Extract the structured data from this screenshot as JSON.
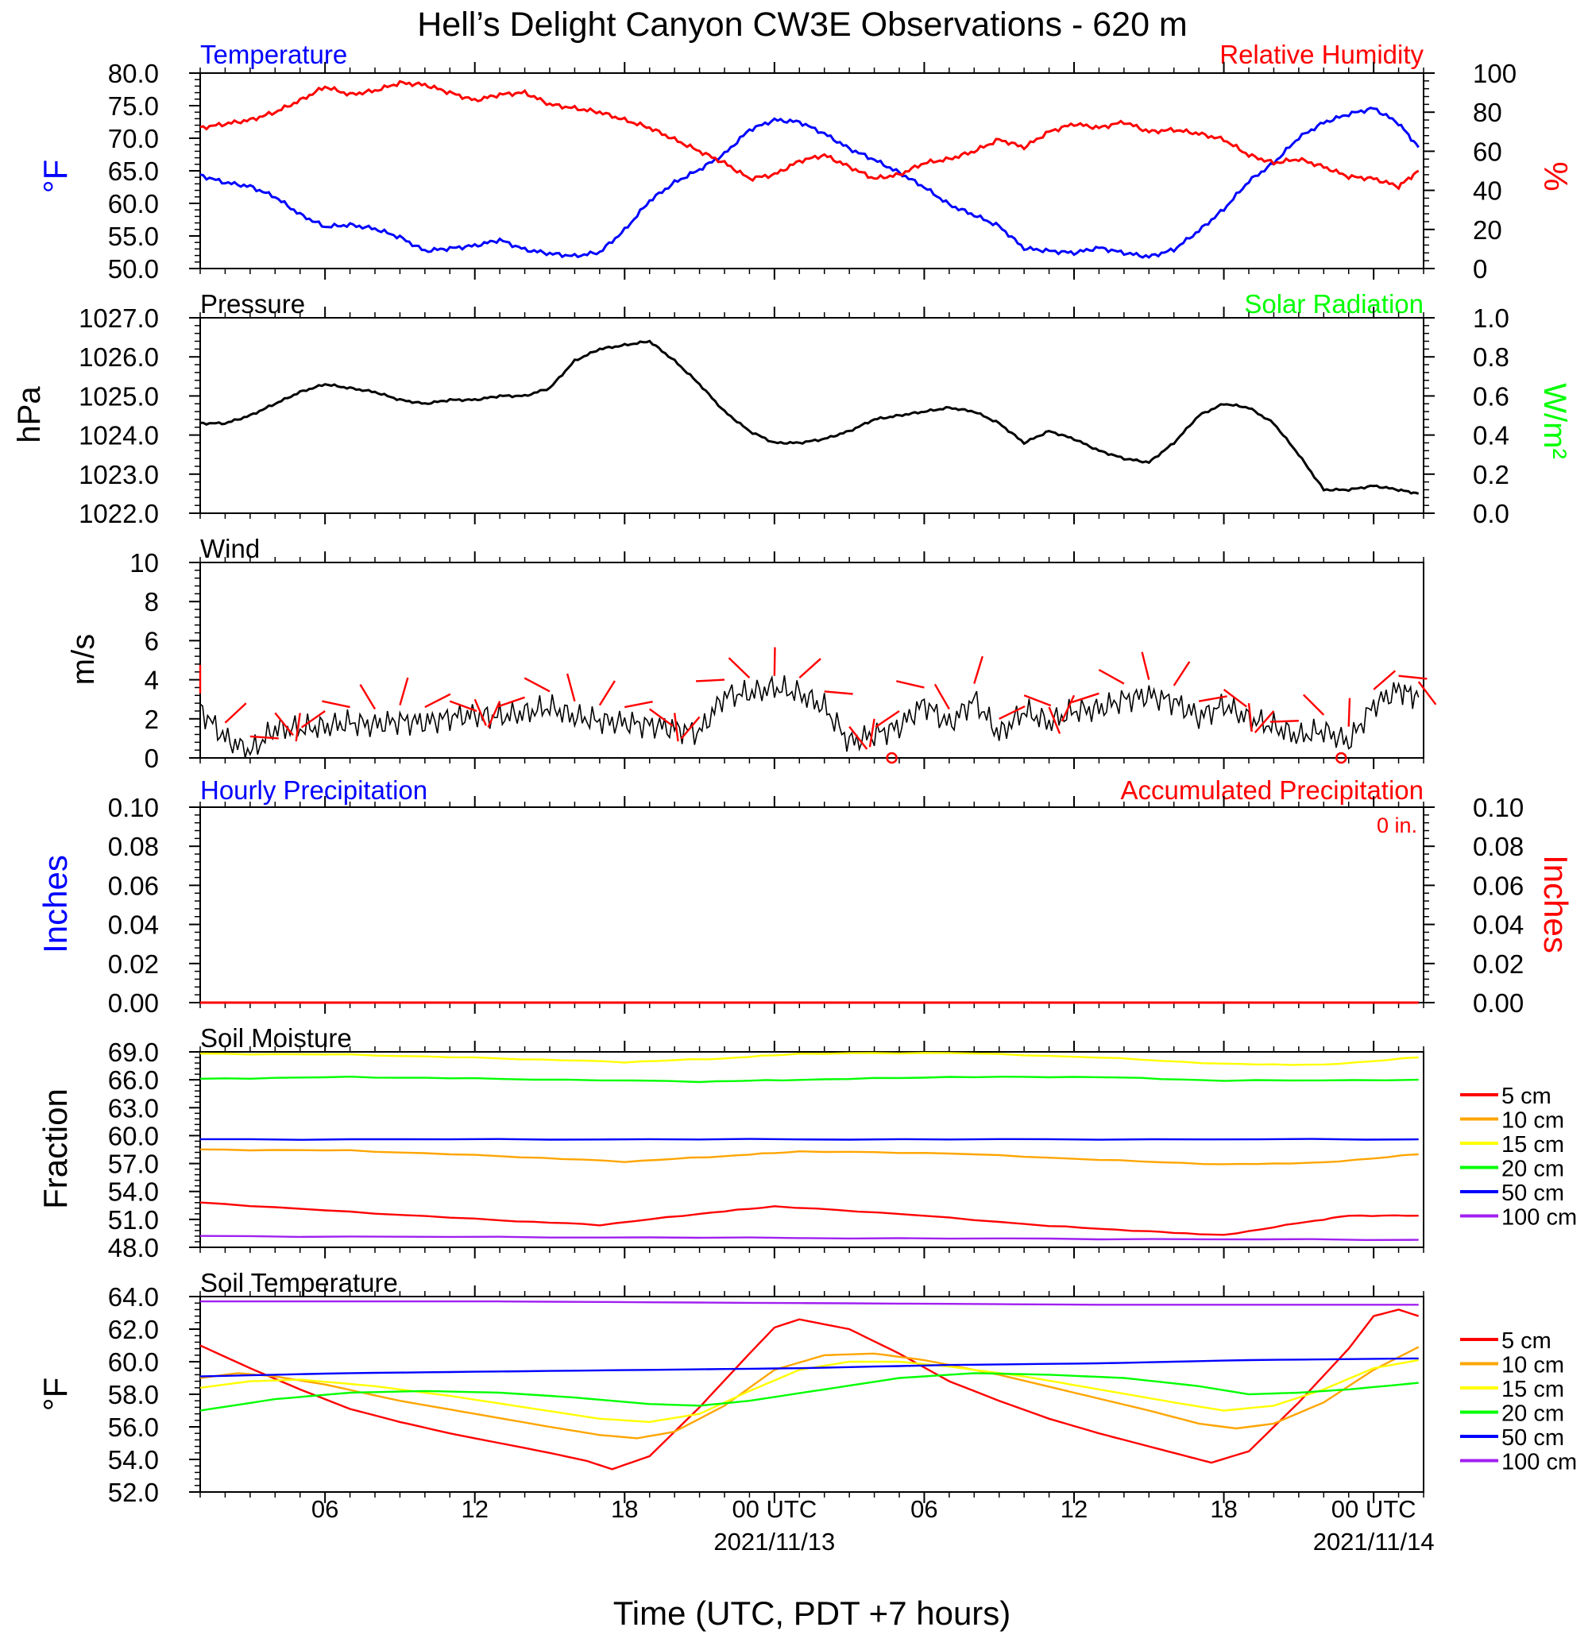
{
  "title": "Hell’s Delight Canyon CW3E Observations - 620 m",
  "x_axis": {
    "label": "Time (UTC, PDT +7 hours)",
    "range_hours": [
      0,
      49
    ],
    "ticks": [
      {
        "h": 5,
        "label": "06"
      },
      {
        "h": 11,
        "label": "12"
      },
      {
        "h": 17,
        "label": "18"
      },
      {
        "h": 23,
        "label": "00 UTC"
      },
      {
        "h": 29,
        "label": "06"
      },
      {
        "h": 35,
        "label": "12"
      },
      {
        "h": 41,
        "label": "18"
      },
      {
        "h": 47,
        "label": "00 UTC"
      }
    ],
    "date_labels": [
      {
        "h": 23,
        "label": "2021/11/13"
      },
      {
        "h": 47,
        "label": "2021/11/14"
      }
    ]
  },
  "colors": {
    "temperature": "#0000ff",
    "humidity": "#ff0000",
    "pressure": "#000000",
    "solar": "#00ff00",
    "wind": "#000000",
    "barb": "#ff0000",
    "hourly_precip": "#0000ff",
    "accum_precip": "#ff0000",
    "depth_5": "#ff0000",
    "depth_10": "#ffa500",
    "depth_15": "#ffff00",
    "depth_20": "#00ff00",
    "depth_50": "#0000ff",
    "depth_100": "#a020f0"
  },
  "panel_titles": {
    "temperature": "Temperature",
    "humidity": "Relative Humidity",
    "pressure": "Pressure",
    "solar": "Solar Radiation",
    "wind": "Wind",
    "hourly_precip": "Hourly Precipitation",
    "accum_precip": "Accumulated Precipitation",
    "soil_moisture": "Soil Moisture",
    "soil_temperature": "Soil Temperature"
  },
  "axis_units": {
    "temp": "°F",
    "rh": "%",
    "pressure": "hPa",
    "solar": "W/m²",
    "wind": "m/s",
    "precip_left": "Inches",
    "precip_right": "Inches",
    "soil_moisture": "Fraction",
    "soil_temp": "°F"
  },
  "accum_total": "0 in.",
  "legend_labels": [
    "5 cm",
    "10 cm",
    "15 cm",
    "20 cm",
    "50 cm",
    "100 cm"
  ],
  "chart_data": [
    {
      "panel": "temperature_humidity",
      "type": "line",
      "ylim_left": [
        50,
        80
      ],
      "ylim_right": [
        0,
        100
      ],
      "left_ticks": [
        "50.0",
        "55.0",
        "60.0",
        "65.0",
        "70.0",
        "75.0",
        "80.0"
      ],
      "right_ticks": [
        "0",
        "20",
        "40",
        "60",
        "80",
        "100"
      ],
      "series": [
        {
          "name": "Temperature",
          "axis": "left",
          "color": "temperature",
          "x": [
            0,
            1,
            2,
            3,
            4,
            5,
            6,
            7,
            8,
            9,
            10,
            11,
            12,
            13,
            14,
            15,
            16,
            17,
            18,
            19,
            20,
            21,
            22,
            23,
            24,
            25,
            26,
            27,
            28,
            29,
            30,
            31,
            32,
            33,
            34,
            35,
            36,
            37,
            38,
            39,
            40,
            41,
            42,
            43,
            44,
            45,
            46,
            47,
            48,
            48.8
          ],
          "y": [
            64.3,
            63.2,
            62.6,
            61.0,
            58.3,
            56.4,
            56.7,
            56.1,
            54.8,
            52.7,
            53.1,
            53.5,
            54.4,
            52.9,
            52.3,
            51.9,
            52.5,
            55.9,
            60.4,
            63.2,
            65.2,
            67.6,
            71.3,
            72.8,
            72.5,
            70.7,
            68.4,
            66.7,
            64.7,
            62.5,
            59.8,
            58.2,
            56.5,
            53.1,
            52.7,
            52.4,
            53.2,
            52.4,
            51.8,
            52.9,
            55.8,
            59.1,
            63.4,
            66.2,
            70.1,
            72.4,
            73.7,
            74.6,
            72.3,
            68.6
          ]
        },
        {
          "name": "Relative Humidity",
          "axis": "right",
          "color": "humidity",
          "x": [
            0,
            1,
            2,
            3,
            4,
            5,
            6,
            7,
            8,
            9,
            10,
            11,
            12,
            13,
            14,
            15,
            16,
            17,
            18,
            19,
            20,
            21,
            22,
            23,
            24,
            25,
            26,
            27,
            28,
            29,
            30,
            31,
            32,
            33,
            34,
            35,
            36,
            37,
            38,
            39,
            40,
            41,
            42,
            43,
            44,
            45,
            46,
            47,
            48,
            48.8
          ],
          "y": [
            72,
            74,
            76,
            80,
            86,
            93,
            89,
            91,
            95,
            94,
            90,
            86,
            89,
            90,
            84,
            82,
            80,
            76,
            72,
            66,
            60,
            54,
            46,
            48,
            55,
            58,
            52,
            46,
            48,
            54,
            56,
            60,
            66,
            62,
            70,
            74,
            72,
            75,
            70,
            71,
            69,
            66,
            58,
            54,
            56,
            52,
            47,
            46,
            42,
            50
          ]
        }
      ]
    },
    {
      "panel": "pressure_solar",
      "type": "line",
      "ylim_left": [
        1022,
        1027
      ],
      "ylim_right": [
        0,
        1
      ],
      "left_ticks": [
        "1022.0",
        "1023.0",
        "1024.0",
        "1025.0",
        "1026.0",
        "1027.0"
      ],
      "right_ticks": [
        "0.0",
        "0.2",
        "0.4",
        "0.6",
        "0.8",
        "1.0"
      ],
      "series": [
        {
          "name": "Pressure",
          "axis": "left",
          "color": "pressure",
          "x": [
            0,
            1,
            2,
            3,
            4,
            5,
            6,
            7,
            8,
            9,
            10,
            11,
            12,
            13,
            14,
            15,
            16,
            17,
            18,
            19,
            20,
            21,
            22,
            23,
            24,
            25,
            26,
            27,
            28,
            29,
            30,
            31,
            32,
            33,
            34,
            35,
            36,
            37,
            38,
            39,
            40,
            41,
            42,
            43,
            44,
            45,
            46,
            47,
            48,
            48.8
          ],
          "y": [
            1024.3,
            1024.3,
            1024.5,
            1024.8,
            1025.1,
            1025.3,
            1025.2,
            1025.1,
            1024.9,
            1024.8,
            1024.9,
            1024.9,
            1025.0,
            1025.0,
            1025.2,
            1025.9,
            1026.2,
            1026.3,
            1026.4,
            1025.9,
            1025.3,
            1024.6,
            1024.1,
            1023.8,
            1023.8,
            1023.9,
            1024.1,
            1024.4,
            1024.5,
            1024.6,
            1024.7,
            1024.6,
            1024.3,
            1023.8,
            1024.1,
            1023.9,
            1023.6,
            1023.4,
            1023.3,
            1023.8,
            1024.5,
            1024.8,
            1024.7,
            1024.3,
            1023.5,
            1022.6,
            1022.6,
            1022.7,
            1022.6,
            1022.5
          ]
        }
      ]
    },
    {
      "panel": "wind",
      "type": "line",
      "ylim": [
        0,
        10
      ],
      "ticks": [
        "0",
        "2",
        "4",
        "6",
        "8",
        "10"
      ],
      "series": [
        {
          "name": "Wind",
          "color": "wind",
          "x": [
            0,
            1,
            2,
            3,
            4,
            5,
            6,
            7,
            8,
            9,
            10,
            11,
            12,
            13,
            14,
            15,
            16,
            17,
            18,
            19,
            20,
            21,
            22,
            23,
            24,
            25,
            26,
            27,
            28,
            29,
            30,
            31,
            32,
            33,
            34,
            35,
            36,
            37,
            38,
            39,
            40,
            41,
            42,
            43,
            44,
            45,
            46,
            47,
            48,
            48.8
          ],
          "y": [
            2.5,
            1.0,
            0.3,
            1.5,
            1.5,
            1.6,
            1.8,
            1.7,
            1.9,
            1.8,
            2.1,
            2.2,
            2.1,
            2.3,
            2.6,
            2.1,
            1.9,
            1.8,
            1.7,
            1.5,
            1.3,
            3.2,
            3.3,
            3.6,
            3.3,
            2.6,
            0.8,
            1.2,
            1.6,
            2.8,
            1.7,
            3.0,
            1.2,
            2.4,
            1.8,
            2.4,
            2.5,
            3.0,
            3.2,
            2.9,
            2.1,
            2.7,
            2.0,
            1.6,
            1.1,
            1.4,
            0.8,
            2.7,
            3.5,
            3.1
          ]
        }
      ]
    },
    {
      "panel": "precipitation",
      "type": "line",
      "ylim_left": [
        0,
        0.1
      ],
      "ylim_right": [
        0,
        0.1
      ],
      "left_ticks": [
        "0.00",
        "0.02",
        "0.04",
        "0.06",
        "0.08",
        "0.10"
      ],
      "right_ticks": [
        "0.00",
        "0.02",
        "0.04",
        "0.06",
        "0.08",
        "0.10"
      ],
      "series": [
        {
          "name": "Hourly Precipitation",
          "color": "hourly_precip",
          "x": [
            0,
            48.8
          ],
          "y": [
            0,
            0
          ]
        },
        {
          "name": "Accumulated Precipitation",
          "color": "accum_precip",
          "x": [
            0,
            48.8
          ],
          "y": [
            0,
            0
          ]
        }
      ]
    },
    {
      "panel": "soil_moisture",
      "type": "line",
      "ylim": [
        48,
        69
      ],
      "ticks": [
        "48.0",
        "51.0",
        "54.0",
        "57.0",
        "60.0",
        "63.0",
        "66.0",
        "69.0"
      ],
      "series": [
        {
          "name": "5 cm",
          "color": "depth_5",
          "x": [
            0,
            6,
            12,
            16,
            20,
            23,
            28,
            34,
            38,
            41,
            44,
            46,
            48.8
          ],
          "y": [
            52.8,
            51.8,
            50.9,
            50.4,
            51.6,
            52.4,
            51.6,
            50.3,
            49.7,
            49.3,
            50.6,
            51.4,
            51.4
          ]
        },
        {
          "name": "10 cm",
          "color": "depth_10",
          "x": [
            0,
            6,
            12,
            17,
            21,
            24,
            30,
            36,
            41,
            45,
            48.8
          ],
          "y": [
            58.5,
            58.4,
            57.8,
            57.2,
            57.8,
            58.3,
            58.1,
            57.4,
            56.9,
            57.1,
            58.0
          ]
        },
        {
          "name": "15 cm",
          "color": "depth_15",
          "x": [
            0,
            6,
            12,
            17,
            21,
            24,
            30,
            36,
            41,
            45,
            48.8
          ],
          "y": [
            68.8,
            68.7,
            68.3,
            67.9,
            68.3,
            68.8,
            68.9,
            68.4,
            67.7,
            67.6,
            68.4
          ]
        },
        {
          "name": "20 cm",
          "color": "depth_20",
          "x": [
            0,
            6,
            12,
            20,
            24,
            30,
            36,
            41,
            48.8
          ],
          "y": [
            66.1,
            66.3,
            66.1,
            65.8,
            66.0,
            66.3,
            66.3,
            65.9,
            66.0
          ]
        },
        {
          "name": "50 cm",
          "color": "depth_50",
          "x": [
            0,
            12,
            24,
            36,
            48.8
          ],
          "y": [
            59.6,
            59.6,
            59.6,
            59.6,
            59.6
          ]
        },
        {
          "name": "100 cm",
          "color": "depth_100",
          "x": [
            0,
            12,
            24,
            36,
            48.8
          ],
          "y": [
            49.2,
            49.1,
            49.0,
            48.9,
            48.8
          ]
        }
      ]
    },
    {
      "panel": "soil_temperature",
      "type": "line",
      "ylim": [
        52,
        64
      ],
      "ticks": [
        "52.0",
        "54.0",
        "56.0",
        "58.0",
        "60.0",
        "62.0",
        "64.0"
      ],
      "series": [
        {
          "name": "5 cm",
          "color": "depth_5",
          "x": [
            0,
            2,
            4,
            6,
            8,
            10,
            12,
            14,
            15.5,
            16.5,
            18,
            20,
            22,
            23,
            24,
            26,
            28,
            30,
            32,
            34,
            36,
            38,
            39.5,
            40.5,
            42,
            44,
            46,
            47,
            48,
            48.8
          ],
          "y": [
            61,
            59.6,
            58.3,
            57.1,
            56.3,
            55.6,
            55,
            54.4,
            53.9,
            53.4,
            54.2,
            57.2,
            60.5,
            62.1,
            62.6,
            62,
            60.5,
            58.8,
            57.6,
            56.5,
            55.6,
            54.8,
            54.2,
            53.8,
            54.5,
            57.5,
            60.8,
            62.8,
            63.2,
            62.8
          ]
        },
        {
          "name": "10 cm",
          "color": "depth_10",
          "x": [
            0,
            1.5,
            3,
            5,
            8,
            11,
            14,
            16,
            17.5,
            19,
            21,
            23,
            25,
            27,
            29,
            32,
            35,
            38,
            40,
            41.5,
            43,
            45,
            47,
            48.8
          ],
          "y": [
            59,
            59.3,
            59.1,
            58.6,
            57.6,
            56.8,
            56,
            55.5,
            55.3,
            55.7,
            57.3,
            59.5,
            60.4,
            60.5,
            60.1,
            59.2,
            58.1,
            57,
            56.2,
            55.9,
            56.2,
            57.5,
            59.5,
            60.9
          ]
        },
        {
          "name": "15 cm",
          "color": "depth_15",
          "x": [
            0,
            2,
            4,
            7,
            10,
            13,
            16,
            18,
            20,
            22,
            24,
            26,
            28,
            30,
            33,
            36,
            39,
            41,
            43,
            45,
            47,
            48.8
          ],
          "y": [
            58.4,
            58.8,
            58.9,
            58.5,
            57.9,
            57.2,
            56.5,
            56.3,
            56.8,
            58.2,
            59.5,
            60,
            60,
            59.7,
            59.1,
            58.3,
            57.5,
            57,
            57.3,
            58.3,
            59.6,
            60.1
          ]
        },
        {
          "name": "20 cm",
          "color": "depth_20",
          "x": [
            0,
            3,
            6,
            9,
            12,
            15,
            18,
            20,
            22,
            25,
            28,
            31,
            34,
            37,
            40,
            42,
            44,
            46,
            48.8
          ],
          "y": [
            57,
            57.7,
            58.1,
            58.2,
            58.1,
            57.8,
            57.4,
            57.3,
            57.6,
            58.3,
            59,
            59.3,
            59.2,
            59,
            58.5,
            58,
            58.1,
            58.3,
            58.7
          ]
        },
        {
          "name": "50 cm",
          "color": "depth_50",
          "x": [
            0,
            6,
            12,
            18,
            24,
            30,
            36,
            42,
            48.8
          ],
          "y": [
            59.1,
            59.3,
            59.4,
            59.5,
            59.6,
            59.8,
            59.9,
            60.1,
            60.2
          ]
        },
        {
          "name": "100 cm",
          "color": "depth_100",
          "x": [
            0,
            12,
            24,
            36,
            48.8
          ],
          "y": [
            63.7,
            63.7,
            63.6,
            63.5,
            63.5
          ]
        }
      ]
    }
  ]
}
